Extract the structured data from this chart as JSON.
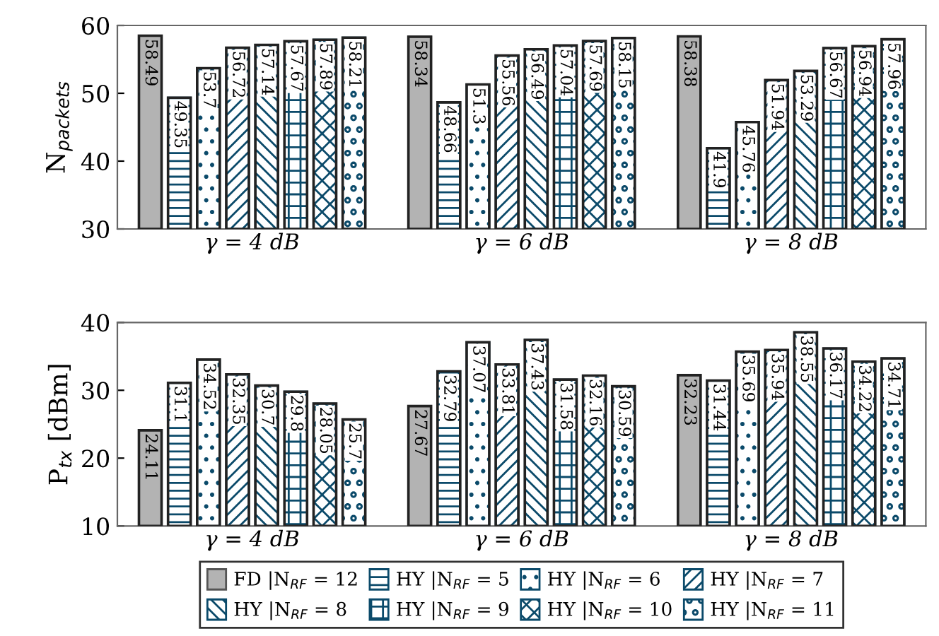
{
  "chart_data": [
    {
      "type": "bar",
      "ylabel": "N$_{packets}$",
      "categories": [
        "γ = 4 dB",
        "γ = 6 dB",
        "γ = 8 dB"
      ],
      "ylim": [
        30,
        60
      ],
      "yticks": [
        30,
        40,
        50,
        60
      ],
      "grid": false,
      "legend": false,
      "data_labels": true,
      "series": [
        {
          "color": "#b3b3b3",
          "values": [
            58.49,
            58.34,
            58.38
          ]
        },
        {
          "color": "#0b4a6a",
          "values": [
            49.35,
            48.66,
            41.9
          ]
        },
        {
          "color": "#0b4a6a",
          "values": [
            53.7,
            51.3,
            45.76
          ]
        },
        {
          "color": "#0b4a6a",
          "values": [
            56.72,
            55.56,
            51.94
          ]
        },
        {
          "color": "#0b4a6a",
          "values": [
            57.14,
            56.49,
            53.29
          ]
        },
        {
          "color": "#0b4a6a",
          "values": [
            57.67,
            57.04,
            56.67
          ]
        },
        {
          "color": "#0b4a6a",
          "values": [
            57.89,
            57.69,
            56.94
          ]
        },
        {
          "color": "#0b4a6a",
          "values": [
            58.21,
            58.15,
            57.96
          ]
        }
      ]
    },
    {
      "type": "bar",
      "ylabel": "P$_{tx}$ [dBm]",
      "categories": [
        "γ = 4 dB",
        "γ = 6 dB",
        "γ = 8 dB"
      ],
      "ylim": [
        10,
        40
      ],
      "yticks": [
        10,
        20,
        30,
        40
      ],
      "grid": false,
      "legend": "bottom",
      "data_labels": true,
      "series": [
        {
          "name": "FD |N$_{RF}$ = 12",
          "color": "#b3b3b3",
          "values": [
            24.11,
            27.67,
            32.23
          ]
        },
        {
          "name": "HY |N$_{RF}$ = 5",
          "color": "#0b4a6a",
          "values": [
            31.1,
            32.79,
            31.44
          ]
        },
        {
          "name": "HY |N$_{RF}$ = 6",
          "color": "#0b4a6a",
          "values": [
            34.52,
            37.07,
            35.69
          ]
        },
        {
          "name": "HY |N$_{RF}$ = 7",
          "color": "#0b4a6a",
          "values": [
            32.35,
            33.81,
            35.94
          ]
        },
        {
          "name": "HY |N$_{RF}$ = 8",
          "color": "#0b4a6a",
          "values": [
            30.7,
            37.43,
            38.55
          ]
        },
        {
          "name": "HY |N$_{RF}$ = 9",
          "color": "#0b4a6a",
          "values": [
            29.8,
            31.58,
            36.17
          ]
        },
        {
          "name": "HY |N$_{RF}$ = 10",
          "color": "#0b4a6a",
          "values": [
            28.05,
            32.16,
            34.22
          ]
        },
        {
          "name": "HY |N$_{RF}$ = 11",
          "color": "#0b4a6a",
          "values": [
            25.7,
            30.59,
            34.71
          ]
        }
      ]
    }
  ]
}
